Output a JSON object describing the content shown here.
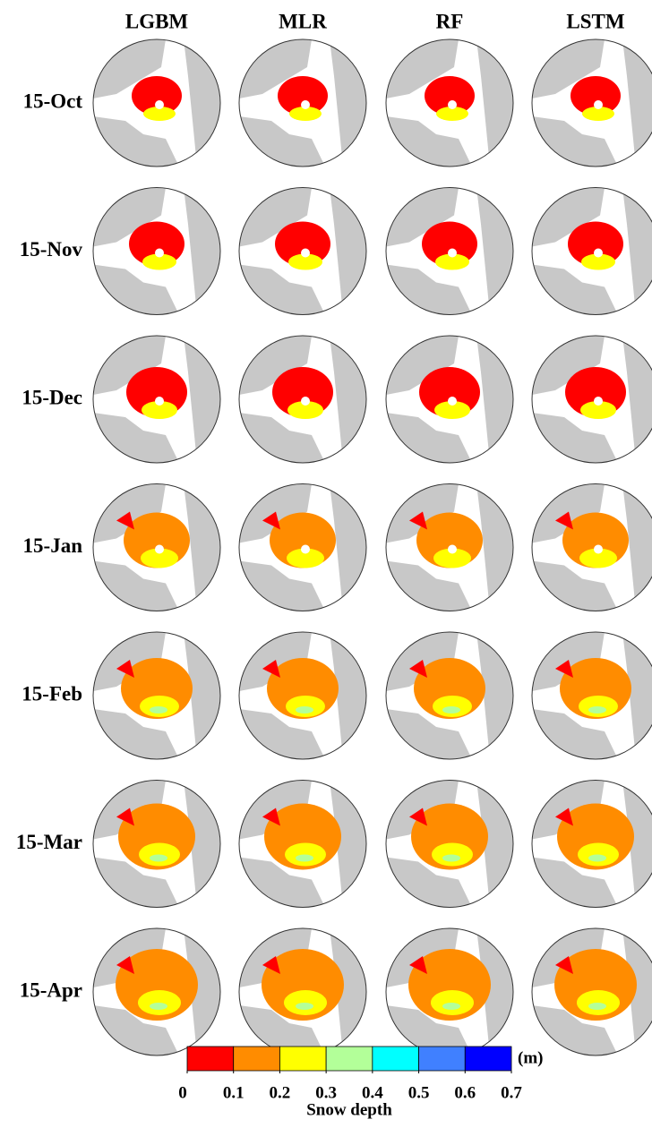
{
  "columns": [
    "LGBM",
    "MLR",
    "RF",
    "LSTM"
  ],
  "rows": [
    "15-Oct",
    "15-Nov",
    "15-Dec",
    "15-Jan",
    "15-Feb",
    "15-Mar",
    "15-Apr"
  ],
  "colorbar": {
    "unit": "(m)",
    "label": "Snow depth",
    "bounds": [
      0,
      0.1,
      0.2,
      0.3,
      0.4,
      0.5,
      0.6,
      0.7
    ],
    "colors": [
      "#ff0000",
      "#ff8c00",
      "#ffff00",
      "#b3ff99",
      "#00ffff",
      "#4080ff",
      "#0000ff"
    ]
  }
}
